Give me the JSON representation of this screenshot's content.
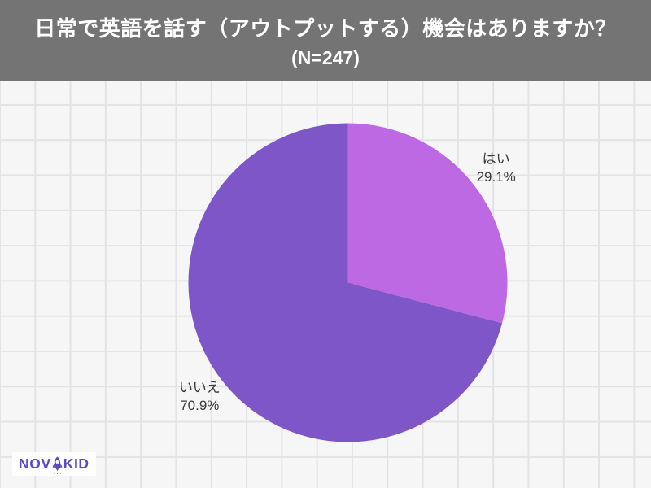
{
  "page": {
    "bg_color": "#f6f6f6",
    "grid_line_color": "#e3e3e6"
  },
  "header": {
    "title_line1": "日常で英語を話す（アウトプットする）機会はありますか？",
    "title_line2": "(N=247)",
    "bg_color": "#747474",
    "text_color": "#ffffff"
  },
  "chart_data": {
    "type": "pie",
    "title": "日常で英語を話す（アウトプットする）機会はありますか？",
    "sample_size_label": "(N=247)",
    "n": 247,
    "start_angle": "12-oclock",
    "direction": "clockwise",
    "legend_position": "none",
    "label_text_color": "#3a3a3a",
    "segments": [
      {
        "label": "はい",
        "value_pct": 29.1,
        "color": "#be69e4"
      },
      {
        "label": "いいえ",
        "value_pct": 70.9,
        "color": "#7e56c8"
      }
    ]
  },
  "logo": {
    "brand": "NOVAKID",
    "text_left": "NOV",
    "text_right": "KID",
    "color": "#5b4ac6",
    "bg_color": "#ffffff",
    "icons": [
      "rocket-icon",
      "sparkles-icon"
    ]
  }
}
